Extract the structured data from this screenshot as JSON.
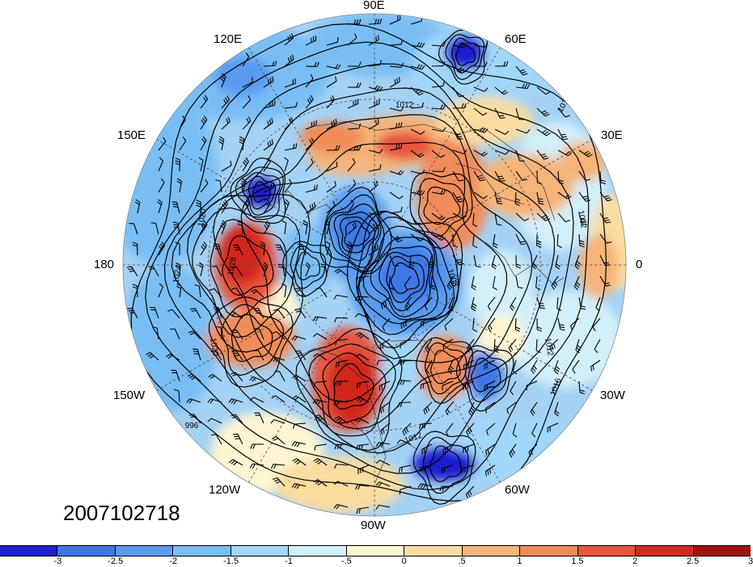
{
  "timestamp": "2007102718",
  "longitude_labels": {
    "lon_90e": "90E",
    "lon_60e": "60E",
    "lon_120e": "120E",
    "lon_30e": "30E",
    "lon_150e": "150E",
    "lon_0": "0",
    "lon_180": "180",
    "lon_30w": "30W",
    "lon_150w": "150W",
    "lon_60w": "60W",
    "lon_120w": "120W",
    "lon_90w": "90W"
  },
  "contour_labels": [
    "1012",
    "1016",
    "1020",
    "1024",
    "1028",
    "1032",
    "1008",
    "996",
    "1012",
    "1016",
    "1020",
    "1012"
  ],
  "colorbar": {
    "colors": [
      "#1e1ed2",
      "#3c78e6",
      "#5a9bf0",
      "#78bef5",
      "#a0d7fa",
      "#d2f0fa",
      "#fff5d2",
      "#fadca0",
      "#f5b478",
      "#f08c5a",
      "#e6553c",
      "#d2281e",
      "#a0140f"
    ],
    "tick_labels": [
      "-3",
      "-2.5",
      "-2",
      "-1.5",
      "-1",
      "-.5",
      "0",
      ".5",
      "1",
      "1.5",
      "2",
      "2.5",
      "3"
    ]
  },
  "projection": "north polar stereographic"
}
